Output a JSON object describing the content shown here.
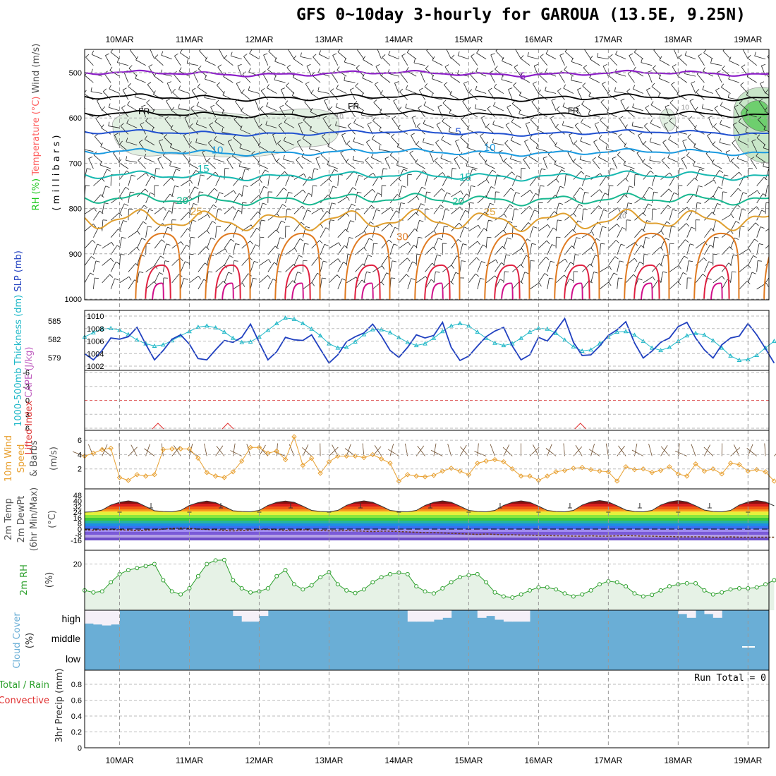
{
  "title": "GFS 0~10day 3-hourly for GAROUA (13.5E, 9.25N)",
  "colors": {
    "purple": "#8c1ec8",
    "black": "#000000",
    "blue": "#2050d0",
    "lightblue": "#1a9ae0",
    "teal": "#16b8b0",
    "green": "#18b890",
    "gold": "#e0a030",
    "orange": "#e07a20",
    "red": "#e02040",
    "magenta": "#d0108a",
    "slp": "#2040c0",
    "thick": "#20b8c8",
    "wind": "#e8a030",
    "rh": "#2ca02c",
    "cloud": "#6aaed6",
    "cloudfree": "#f5f0f8"
  },
  "chart_data": {
    "type": "meteogram",
    "dates": [
      "10MAR",
      "11MAR",
      "12MAR",
      "13MAR",
      "14MAR",
      "15MAR",
      "16MAR",
      "17MAR",
      "18MAR",
      "19MAR"
    ],
    "x_start_day": 9.5,
    "x_end_day": 19.3,
    "step_hours": 3,
    "panels": [
      {
        "id": "upper_air",
        "ylabel_parts": [
          "RH (%)",
          "Temperature (°C)",
          "Wind (m/s)"
        ],
        "yunit": "( m i l l i b a r s )",
        "yticks": [
          500,
          600,
          700,
          800,
          900,
          1000
        ],
        "isotherm_labels": [
          {
            "value": "-5",
            "day": 15.75,
            "p": 515
          },
          {
            "value": "FR",
            "day": 10.35,
            "p": 592
          },
          {
            "value": "FR",
            "day": 13.35,
            "p": 580
          },
          {
            "value": "FR",
            "day": 16.5,
            "p": 590
          },
          {
            "value": "5",
            "day": 14.85,
            "p": 638
          },
          {
            "value": "10",
            "day": 11.4,
            "p": 678
          },
          {
            "value": "10",
            "day": 15.3,
            "p": 673
          },
          {
            "value": "15",
            "day": 11.2,
            "p": 720
          },
          {
            "value": "15",
            "day": 14.95,
            "p": 738
          },
          {
            "value": "20",
            "day": 10.9,
            "p": 790
          },
          {
            "value": "20",
            "day": 14.85,
            "p": 792
          },
          {
            "value": "25",
            "day": 11.1,
            "p": 814
          },
          {
            "value": "25",
            "day": 15.3,
            "p": 815
          },
          {
            "value": "30",
            "day": 14.05,
            "p": 870
          }
        ],
        "rh_labels": [
          {
            "value": "10",
            "day": 13.15,
            "p": 602
          },
          {
            "value": "10",
            "day": 17.2,
            "p": 822
          },
          {
            "value": "10",
            "day": 18.1,
            "p": 582
          }
        ]
      },
      {
        "id": "thickness_slp",
        "ylabel_parts": [
          "1000-500mb Thickness (dm)",
          "SLP (mb)"
        ],
        "thickness_ticks": [
          579,
          582,
          585
        ],
        "slp_ticks": [
          1002,
          1004,
          1006,
          1008,
          1010
        ],
        "series": [
          {
            "name": "SLP",
            "values": [
              1004.0,
              1003.0,
              1004.5,
              1006.5,
              1006.3,
              1006.7,
              1008.2,
              1005.5,
              1003.0,
              1004.5,
              1006.3,
              1007.0,
              1005.5,
              1003.2,
              1003.0,
              1004.6,
              1006.1,
              1005.8,
              1006.6,
              1008.7,
              1005.8,
              1003.0,
              1004.3,
              1006.6,
              1006.2,
              1006.1,
              1007.0,
              1004.7,
              1002.5,
              1003.8,
              1005.9,
              1006.7,
              1007.3,
              1008.7,
              1006.8,
              1004.5,
              1003.4,
              1005.0,
              1007.0,
              1006.5,
              1006.9,
              1009.0,
              1005.0,
              1002.9,
              1003.6,
              1005.2,
              1006.7,
              1007.6,
              1008.2,
              1005.2,
              1003.0,
              1003.8,
              1006.6,
              1006.0,
              1007.7,
              1009.6,
              1005.8,
              1003.7,
              1003.8,
              1005.2,
              1006.9,
              1007.8,
              1009.1,
              1005.7,
              1003.3,
              1004.4,
              1005.8,
              1006.5,
              1008.3,
              1009.0,
              1006.5,
              1004.6,
              1003.3,
              1005.4,
              1006.5,
              1006.8,
              1008.8,
              1007.0,
              1004.8,
              1002.5
            ]
          },
          {
            "name": "Thickness",
            "values": [
              582.4,
              583.1,
              583.7,
              583.8,
              583.5,
              582.8,
              581.9,
              581.3,
              580.9,
              581.1,
              581.8,
              582.6,
              583.3,
              584.0,
              584.2,
              583.9,
              583.2,
              582.2,
              581.5,
              581.6,
              582.4,
              583.5,
              584.6,
              585.5,
              585.3,
              584.6,
              583.7,
              582.6,
              581.3,
              580.6,
              580.7,
              581.6,
              582.8,
              583.6,
              583.6,
              583.1,
              582.3,
              581.5,
              581.0,
              581.3,
              582.2,
              583.3,
              584.2,
              584.6,
              584.2,
              583.2,
              582.2,
              581.4,
              581.0,
              581.3,
              582.2,
              583.2,
              583.8,
              583.7,
              583.0,
              581.9,
              580.8,
              580.1,
              580.3,
              581.3,
              582.4,
              583.2,
              583.3,
              582.7,
              581.7,
              580.6,
              580.2,
              580.7,
              581.7,
              582.6,
              583.0,
              582.7,
              581.8,
              580.6,
              579.3,
              578.6,
              578.7,
              579.4,
              580.6,
              581.7
            ]
          }
        ]
      },
      {
        "id": "cape_li",
        "ylabel_parts": [
          "Lifted Index",
          "CAPE (J/kg)"
        ],
        "yticks": [
          "-6",
          "-3",
          "0",
          "3",
          "6"
        ]
      },
      {
        "id": "wind10m",
        "ylabel_parts": [
          "10m Wind",
          "Speed",
          "& Barbs",
          "(m/s)"
        ],
        "yticks": [
          2,
          4,
          6
        ],
        "series": [
          {
            "name": "Speed",
            "values": [
              3.8,
              4.2,
              4.7,
              4.9,
              0.8,
              0.4,
              1.2,
              1.0,
              1.2,
              4.7,
              4.8,
              4.8,
              4.8,
              3.5,
              1.5,
              1.0,
              0.8,
              1.6,
              3.1,
              5.0,
              5.0,
              4.2,
              4.5,
              3.3,
              6.5,
              2.5,
              3.5,
              1.4,
              3.0,
              3.8,
              3.8,
              3.8,
              3.6,
              4.0,
              3.4,
              2.8,
              0.3,
              1.2,
              1.0,
              0.9,
              1.1,
              1.7,
              2.1,
              1.7,
              1.2,
              2.8,
              3.1,
              3.3,
              3.0,
              2.0,
              1.0,
              1.0,
              0.4,
              1.0,
              1.6,
              1.8,
              2.1,
              2.2,
              1.9,
              1.7,
              1.6,
              0.3,
              2.3,
              1.9,
              2.0,
              1.5,
              1.8,
              2.3,
              1.3,
              1.0,
              2.7,
              1.7,
              2.0,
              1.3,
              2.8,
              2.6,
              1.7,
              1.9,
              1.6,
              0.3
            ]
          }
        ]
      },
      {
        "id": "temp2m",
        "ylabel_parts": [
          "2m Temp",
          "2m DewPt",
          "(6hr Min/Max)",
          "(°C)"
        ],
        "yticks": [
          "48",
          "40",
          "32",
          "24",
          "16",
          "8",
          "0",
          "-8",
          "-16"
        ],
        "series": [
          {
            "name": "Temp",
            "values": [
              24,
              24.5,
              27,
              34,
              38,
              40,
              38,
              32,
              26,
              25,
              24.5,
              26.5,
              33.5,
              37.5,
              39.7,
              37.5,
              32,
              26,
              25,
              24.5,
              26.5,
              33.5,
              38,
              39.8,
              38,
              32.5,
              26.5,
              25,
              24.5,
              26.5,
              33.7,
              38,
              40,
              38,
              32.5,
              26.5,
              25,
              24.5,
              26.5,
              33.5,
              38,
              40,
              38,
              32.5,
              26.5,
              25,
              24.5,
              26.5,
              33.5,
              38,
              40,
              38,
              32.5,
              26.5,
              25,
              24.5,
              26.5,
              34,
              38.5,
              40.5,
              38.5,
              33,
              27,
              25,
              24.5,
              26.5,
              34,
              38.5,
              40.5,
              38.5,
              33,
              27,
              25,
              24.5,
              26.5,
              34,
              38.5,
              40.5,
              38.5,
              33
            ]
          },
          {
            "name": "DewPt",
            "values": [
              -1,
              -1.5,
              -1,
              -0.5,
              -1,
              -1.5,
              -2,
              -1.5,
              -1,
              0,
              1,
              1.5,
              1,
              0,
              -0.5,
              -1,
              -2,
              -2.5,
              -2,
              -1.5,
              -0.5,
              -0.5,
              -1,
              -2,
              -1.5,
              -1,
              -1.5,
              -2,
              -2.5,
              -2.5,
              -2,
              -2.5,
              -3,
              -3.5,
              -3,
              -3,
              -3.5,
              -4,
              -4.5,
              -5,
              -5,
              -5.5,
              -6,
              -6.5,
              -7,
              -7.5,
              -7,
              -7.5,
              -8,
              -8,
              -8.5,
              -8.5,
              -9,
              -9,
              -9.5,
              -9.5,
              -10,
              -10,
              -9.5,
              -10,
              -10,
              -9.5,
              -9,
              -9.5,
              -10,
              -10,
              -10.5,
              -10.5,
              -11,
              -11,
              -11,
              -11,
              -11.5,
              -11.5,
              -11,
              -11.5,
              -11.5,
              -11.5,
              -11.5,
              -11.5
            ]
          }
        ]
      },
      {
        "id": "rh2m",
        "ylabel_parts": [
          "2m RH",
          "(%)"
        ],
        "yticks": [
          20
        ],
        "series": [
          {
            "name": "RH",
            "values": [
              7,
              6,
              6.5,
              11,
              15,
              17,
              18,
              19,
              20,
              12,
              6.5,
              5,
              8,
              14,
              20,
              21.8,
              22,
              12,
              8,
              6,
              6.5,
              8,
              14,
              17,
              10,
              7.5,
              9.5,
              13.5,
              16,
              10,
              7,
              5.7,
              7.5,
              11,
              13.5,
              15,
              15.8,
              15,
              9,
              6.5,
              5.5,
              8,
              11,
              13.5,
              14.5,
              15,
              11,
              6,
              4,
              3.5,
              5,
              7,
              8.5,
              8.5,
              7.5,
              5.5,
              4,
              5,
              7,
              10,
              11.5,
              11,
              9,
              5.5,
              4,
              4.8,
              7,
              9,
              10,
              10.5,
              10.5,
              7,
              5,
              6,
              7.5,
              8,
              8,
              8.5,
              10,
              12
            ]
          }
        ]
      },
      {
        "id": "cloud",
        "ylabel_parts": [
          "Cloud Cover",
          "(%)"
        ],
        "levels": [
          "high",
          "middle",
          "low"
        ],
        "high_cover": [
          30,
          25,
          20,
          25,
          100,
          100,
          100,
          100,
          100,
          100,
          100,
          100,
          100,
          100,
          100,
          100,
          100,
          70,
          40,
          40,
          70,
          100,
          100,
          100,
          100,
          100,
          100,
          100,
          100,
          100,
          100,
          100,
          100,
          100,
          100,
          100,
          100,
          40,
          40,
          40,
          50,
          60,
          100,
          100,
          100,
          60,
          70,
          50,
          40,
          40,
          40,
          100,
          100,
          100,
          100,
          100,
          100,
          100,
          100,
          100,
          100,
          100,
          100,
          100,
          100,
          100,
          100,
          100,
          80,
          60,
          100,
          80,
          60,
          100,
          100,
          100,
          100,
          100,
          100,
          100
        ]
      },
      {
        "id": "precip",
        "ylabel_parts": [
          "Total / Rain",
          "Convective",
          "3hr Precip (mm)"
        ],
        "yticks": [
          "0",
          "0.2",
          "0.4",
          "0.6",
          "0.8"
        ],
        "run_total": "Run Total = 0"
      }
    ]
  }
}
